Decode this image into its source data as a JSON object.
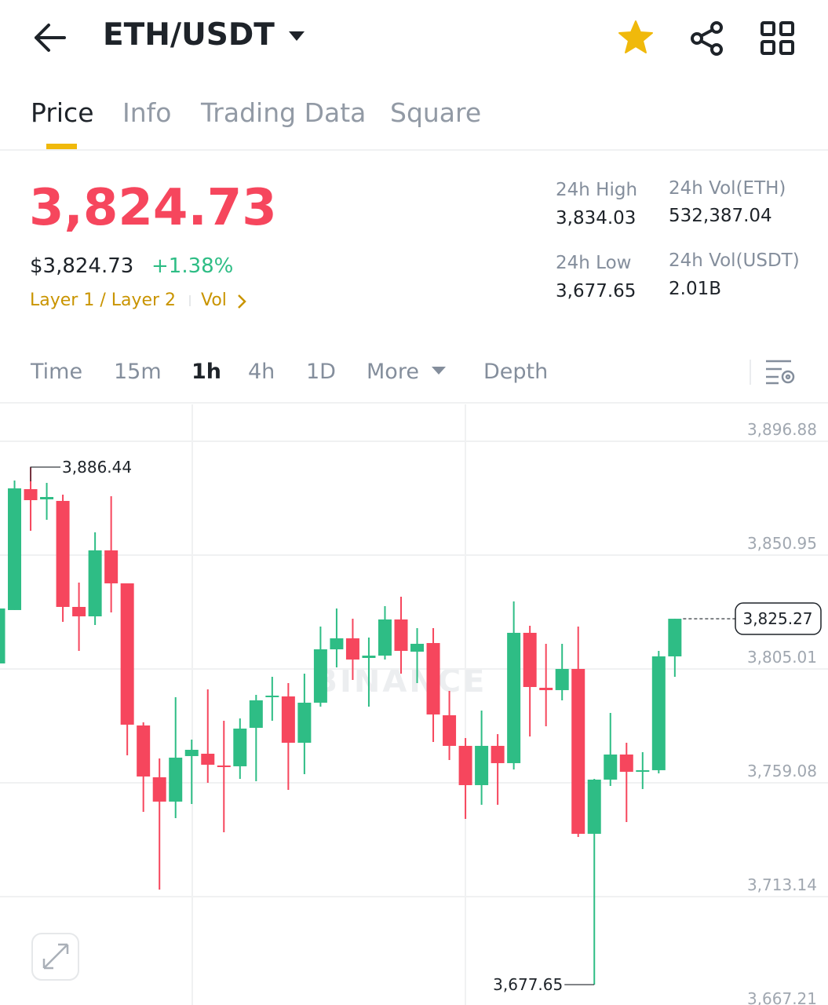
{
  "header": {
    "pair": "ETH/USDT"
  },
  "tabs": [
    "Price",
    "Info",
    "Trading Data",
    "Square"
  ],
  "ticker": {
    "price": "3,824.73",
    "fiat_price": "$3,824.73",
    "change": "+1.38%",
    "tag": "Layer 1 / Layer 2",
    "vol_link": "Vol"
  },
  "stats": [
    {
      "label": "24h High",
      "value": "3,834.03"
    },
    {
      "label": "24h Vol(ETH)",
      "value": "532,387.04"
    },
    {
      "label": "24h Low",
      "value": "3,677.65"
    },
    {
      "label": "24h Vol(USDT)",
      "value": "2.01B"
    }
  ],
  "intervals": [
    "Time",
    "15m",
    "1h",
    "4h",
    "1D",
    "More",
    "Depth"
  ],
  "chart_data": {
    "type": "candlestick",
    "watermark": "BINANCE",
    "up_color": "#2ebd85",
    "down_color": "#f6465d",
    "grid": true,
    "categories": [
      null,
      null,
      null,
      null,
      null,
      null,
      null,
      null,
      null,
      null,
      null,
      null,
      null,
      null,
      null,
      null,
      null,
      null,
      null,
      null,
      null,
      null,
      null,
      null,
      null,
      null,
      null,
      null,
      null,
      null,
      null,
      null,
      null,
      null,
      null,
      null,
      null,
      null,
      null,
      null,
      null,
      null,
      null
    ],
    "open": [
      3807.24,
      3828.78,
      3877.56,
      3873.44,
      3872.81,
      3830.04,
      3826.24,
      3852.85,
      3839.55,
      3782.21,
      3761.31,
      3751.49,
      3769.86,
      3770.81,
      3766.06,
      3765.74,
      3781.26,
      3793.62,
      3793.93,
      3775.24,
      3791.4,
      3812.94,
      3817.37,
      3809.45,
      3810.4,
      3824.98,
      3811.99,
      3815.47,
      3786.33,
      3773.98,
      3758.14,
      3773.98,
      3767.01,
      3819.59,
      3797.42,
      3796.47,
      3805.02,
      3738.5,
      3760.36,
      3770.49,
      3763.52,
      3764.16,
      3810.09
    ],
    "high": [
      3829.41,
      3881.04,
      3886.44,
      3880.09,
      3875.34,
      3839.86,
      3860.14,
      3874.71,
      3839.55,
      3783.48,
      3768.91,
      3793.62,
      3776.51,
      3796.78,
      3784.11,
      3785.06,
      3794.57,
      3801.85,
      3799.32,
      3803.12,
      3822.12,
      3829.41,
      3825.29,
      3817.69,
      3830.36,
      3834.16,
      3821.49,
      3821.49,
      3796.15,
      3777.14,
      3788.23,
      3778.73,
      3832.26,
      3822.44,
      3815.16,
      3815.16,
      3822.12,
      3760.67,
      3787.28,
      3775.24,
      3771.44,
      3812.31,
      3825.27
    ],
    "low": [
      3807.24,
      3828.78,
      3860.77,
      3865.2,
      3824.03,
      3812.31,
      3822.76,
      3827.83,
      3770.18,
      3747.37,
      3716.01,
      3744.84,
      3750.54,
      3759.09,
      3739.13,
      3760.67,
      3759.72,
      3784.11,
      3756.24,
      3762.57,
      3789.82,
      3805.65,
      3800.58,
      3789.82,
      3808.82,
      3803.12,
      3799.32,
      3775.56,
      3768.28,
      3744.52,
      3750.22,
      3750.22,
      3764.47,
      3777.78,
      3781.9,
      3792.35,
      3737.23,
      3677.65,
      3757.82,
      3743.25,
      3756.56,
      3762.89,
      3801.85
    ],
    "close": [
      3829.41,
      3877.87,
      3873.12,
      3874.39,
      3830.04,
      3826.24,
      3852.85,
      3839.55,
      3782.53,
      3761.62,
      3751.49,
      3769.23,
      3772.39,
      3766.37,
      3765.42,
      3780.95,
      3792.35,
      3794.25,
      3775.24,
      3791.4,
      3812.94,
      3817.37,
      3808.82,
      3810.4,
      3824.98,
      3812.31,
      3815.16,
      3786.65,
      3773.98,
      3758.14,
      3773.98,
      3767.01,
      3819.59,
      3797.73,
      3796.47,
      3805.02,
      3738.5,
      3760.36,
      3770.49,
      3763.52,
      3764.16,
      3810.09,
      3825.27
    ],
    "ylim": [
      3667.21,
      3911.77
    ],
    "yticks": [
      {
        "value": 3896.88,
        "label": "3,896.88"
      },
      {
        "value": 3850.95,
        "label": "3,850.95"
      },
      {
        "value": 3805.01,
        "label": "3,805.01"
      },
      {
        "value": 3759.08,
        "label": "3,759.08"
      },
      {
        "value": 3713.14,
        "label": "3,713.14"
      },
      {
        "value": 3667.21,
        "label": "3,667.21"
      }
    ],
    "last_price": {
      "value": 3825.27,
      "label": "3,825.27"
    },
    "max_label": {
      "value": 3886.44,
      "label": "3,886.44"
    },
    "min_label": {
      "value": 3677.65,
      "label": "3,677.65"
    }
  }
}
